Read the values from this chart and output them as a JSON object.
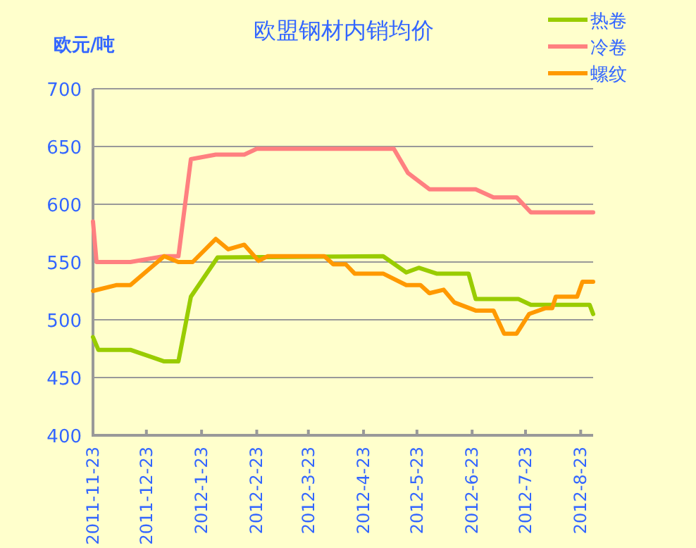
{
  "chart_data": {
    "type": "line",
    "title": "欧盟钢材内销均价",
    "ylabel": "欧元/吨",
    "legend": "top right",
    "grid": "y",
    "marker": "none",
    "line_style": "solid",
    "xlim": [
      "2011-11-23",
      "2012-08-30"
    ],
    "ylim": [
      400,
      700
    ],
    "yticks": [
      400,
      450,
      500,
      550,
      600,
      650,
      700
    ],
    "xticks": [
      {
        "value": "2011-11-23",
        "label": "2011-11-23"
      },
      {
        "value": "2011-12-23",
        "label": "2011-12-23"
      },
      {
        "value": "2012-01-23",
        "label": "2012-1-23"
      },
      {
        "value": "2012-02-23",
        "label": "2012-2-23"
      },
      {
        "value": "2012-03-23",
        "label": "2012-3-23"
      },
      {
        "value": "2012-04-23",
        "label": "2012-4-23"
      },
      {
        "value": "2012-05-23",
        "label": "2012-5-23"
      },
      {
        "value": "2012-06-23",
        "label": "2012-6-23"
      },
      {
        "value": "2012-07-23",
        "label": "2012-7-23"
      },
      {
        "value": "2012-08-23",
        "label": "2012-8-23"
      }
    ],
    "series": [
      {
        "name": "热卷",
        "color": "#99cc00",
        "x": [
          "2011-11-23",
          "2011-11-26",
          "2011-12-14",
          "2012-01-02",
          "2012-01-10",
          "2012-01-17",
          "2012-02-01",
          "2012-05-04",
          "2012-05-17",
          "2012-05-24",
          "2012-06-03",
          "2012-06-21",
          "2012-06-25",
          "2012-07-19",
          "2012-07-26",
          "2012-08-28",
          "2012-08-30"
        ],
        "values": [
          485,
          474,
          474,
          464,
          464,
          520,
          554,
          555,
          541,
          545,
          540,
          540,
          518,
          518,
          513,
          513,
          505
        ]
      },
      {
        "name": "冷卷",
        "color": "#ff8080",
        "x": [
          "2011-11-23",
          "2011-11-25",
          "2011-12-14",
          "2012-01-02",
          "2012-01-10",
          "2012-01-17",
          "2012-01-31",
          "2012-02-16",
          "2012-02-23",
          "2012-05-10",
          "2012-05-18",
          "2012-05-30",
          "2012-06-25",
          "2012-07-05",
          "2012-07-18",
          "2012-07-26",
          "2012-08-30"
        ],
        "values": [
          585,
          550,
          550,
          555,
          555,
          639,
          643,
          643,
          648,
          648,
          627,
          613,
          613,
          606,
          606,
          593,
          593
        ]
      },
      {
        "name": "螺纹",
        "color": "#ff9900",
        "x": [
          "2011-11-23",
          "2011-12-06",
          "2011-12-14",
          "2012-01-02",
          "2012-01-10",
          "2012-01-18",
          "2012-01-31",
          "2012-02-07",
          "2012-02-16",
          "2012-02-24",
          "2012-02-29",
          "2012-04-01",
          "2012-04-06",
          "2012-04-13",
          "2012-04-18",
          "2012-05-04",
          "2012-05-17",
          "2012-05-25",
          "2012-05-30",
          "2012-06-07",
          "2012-06-13",
          "2012-06-25",
          "2012-07-05",
          "2012-07-11",
          "2012-07-18",
          "2012-07-25",
          "2012-08-03",
          "2012-08-07",
          "2012-08-09",
          "2012-08-21",
          "2012-08-24",
          "2012-08-30"
        ],
        "values": [
          525,
          530,
          530,
          555,
          550,
          550,
          570,
          561,
          565,
          551,
          555,
          555,
          548,
          548,
          540,
          540,
          530,
          530,
          523,
          526,
          515,
          508,
          508,
          488,
          488,
          505,
          510,
          510,
          520,
          520,
          533,
          533
        ]
      }
    ]
  }
}
